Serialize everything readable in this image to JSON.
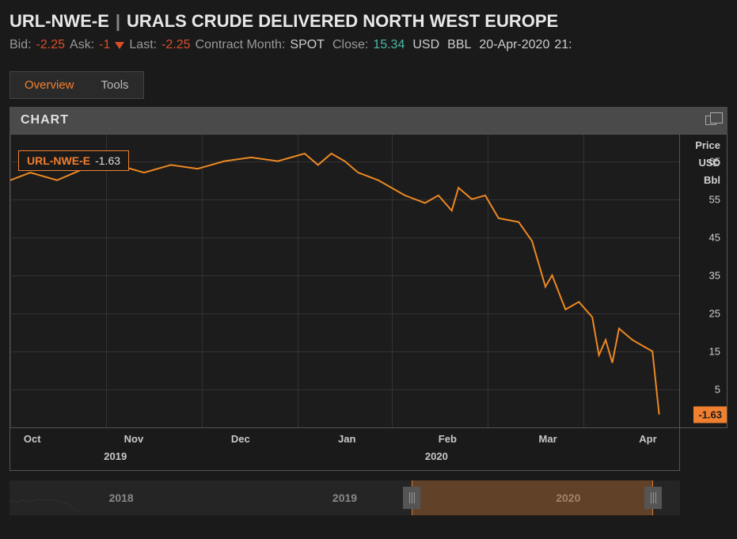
{
  "header": {
    "ticker": "URL-NWE-E",
    "divider": "|",
    "name": "URALS CRUDE DELIVERED NORTH WEST EUROPE"
  },
  "quote": {
    "bid_label": "Bid:",
    "bid_value": "-2.25",
    "ask_label": "Ask:",
    "ask_value": "-1",
    "last_label": "Last:",
    "last_value": "-2.25",
    "contract_month_label": "Contract Month:",
    "contract_month_value": "SPOT",
    "close_label": "Close:",
    "close_value": "15.34",
    "currency": "USD",
    "unit": "BBL",
    "date": "20-Apr-2020",
    "time": "21:"
  },
  "tabs": {
    "overview": "Overview",
    "tools": "Tools"
  },
  "chart": {
    "panel_title": "CHART",
    "series_symbol": "URL-NWE-E",
    "series_last": "-1.63",
    "line_color": "#ee8822",
    "y_title_1": "Price",
    "y_title_2": "USD",
    "y_title_3": "Bbl",
    "y_ticks": [
      {
        "label": "65",
        "value": 65
      },
      {
        "label": "55",
        "value": 55
      },
      {
        "label": "45",
        "value": 45
      },
      {
        "label": "35",
        "value": 35
      },
      {
        "label": "25",
        "value": 25
      },
      {
        "label": "15",
        "value": 15
      },
      {
        "label": "5",
        "value": 5
      }
    ],
    "y_min": -5,
    "y_max": 72,
    "last_marker": "-1.63",
    "last_marker_value": -1.63,
    "x_months": [
      {
        "label": "Oct",
        "pos_pct": 2
      },
      {
        "label": "Nov",
        "pos_pct": 17
      },
      {
        "label": "Dec",
        "pos_pct": 33
      },
      {
        "label": "Jan",
        "pos_pct": 49
      },
      {
        "label": "Feb",
        "pos_pct": 64
      },
      {
        "label": "Mar",
        "pos_pct": 79
      },
      {
        "label": "Apr",
        "pos_pct": 94
      }
    ],
    "x_years": [
      {
        "label": "2019",
        "pos_pct": 14
      },
      {
        "label": "2020",
        "pos_pct": 62
      }
    ],
    "v_grid_pct": [
      0,
      14.3,
      28.6,
      42.9,
      57.1,
      71.4,
      85.7,
      100
    ],
    "series": [
      {
        "x": 0,
        "y": 60
      },
      {
        "x": 3,
        "y": 62
      },
      {
        "x": 7,
        "y": 60
      },
      {
        "x": 11,
        "y": 63
      },
      {
        "x": 16,
        "y": 64
      },
      {
        "x": 20,
        "y": 62
      },
      {
        "x": 24,
        "y": 64
      },
      {
        "x": 28,
        "y": 63
      },
      {
        "x": 32,
        "y": 65
      },
      {
        "x": 36,
        "y": 66
      },
      {
        "x": 40,
        "y": 65
      },
      {
        "x": 44,
        "y": 67
      },
      {
        "x": 46,
        "y": 64
      },
      {
        "x": 48,
        "y": 67
      },
      {
        "x": 50,
        "y": 65
      },
      {
        "x": 52,
        "y": 62
      },
      {
        "x": 55,
        "y": 60
      },
      {
        "x": 57,
        "y": 58
      },
      {
        "x": 59,
        "y": 56
      },
      {
        "x": 62,
        "y": 54
      },
      {
        "x": 64,
        "y": 56
      },
      {
        "x": 66,
        "y": 52
      },
      {
        "x": 67,
        "y": 58
      },
      {
        "x": 69,
        "y": 55
      },
      {
        "x": 71,
        "y": 56
      },
      {
        "x": 73,
        "y": 50
      },
      {
        "x": 76,
        "y": 49
      },
      {
        "x": 78,
        "y": 44
      },
      {
        "x": 80,
        "y": 32
      },
      {
        "x": 81,
        "y": 35
      },
      {
        "x": 83,
        "y": 26
      },
      {
        "x": 85,
        "y": 28
      },
      {
        "x": 87,
        "y": 24
      },
      {
        "x": 88,
        "y": 14
      },
      {
        "x": 89,
        "y": 18
      },
      {
        "x": 90,
        "y": 12
      },
      {
        "x": 91,
        "y": 21
      },
      {
        "x": 93,
        "y": 18
      },
      {
        "x": 95,
        "y": 16
      },
      {
        "x": 96,
        "y": 15
      },
      {
        "x": 97,
        "y": -1.63
      }
    ]
  },
  "range_nav": {
    "years": [
      "2018",
      "2019",
      "2020"
    ],
    "selection_start_pct": 60,
    "selection_end_pct": 96
  },
  "colors": {
    "accent": "#f08030",
    "neg": "#d94f2a",
    "pos": "#4db8a8",
    "bg": "#1a1a1a",
    "grid": "#333"
  }
}
